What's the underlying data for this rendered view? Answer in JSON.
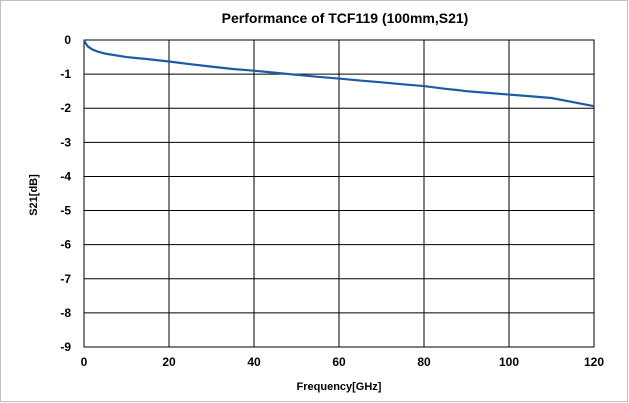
{
  "chart_data": {
    "type": "line",
    "title": "Performance of TCF119 (100mm,S21)",
    "xlabel": "Frequency[GHz]",
    "ylabel": "S21[dB]",
    "xlim": [
      0,
      120
    ],
    "ylim": [
      -9,
      0
    ],
    "x_ticks": [
      0,
      20,
      40,
      60,
      80,
      100,
      120
    ],
    "y_ticks": [
      0,
      -1,
      -2,
      -3,
      -4,
      -5,
      -6,
      -7,
      -8,
      -9
    ],
    "x_tick_labels": [
      "0",
      "20",
      "40",
      "60",
      "80",
      "100",
      "120"
    ],
    "y_tick_labels": [
      "0",
      "-1",
      "-2",
      "-3",
      "-4",
      "-5",
      "-6",
      "-7",
      "-8",
      "-9"
    ],
    "grid": true,
    "legend": "none",
    "colors": {
      "series": "#1f5aa6",
      "grid": "#000000"
    },
    "series": [
      {
        "x": [
          0,
          0.5,
          1,
          2,
          3,
          5,
          10,
          15,
          20,
          25,
          30,
          35,
          40,
          45,
          50,
          55,
          60,
          65,
          70,
          75,
          80,
          85,
          88,
          90,
          92,
          95,
          100,
          105,
          110,
          115,
          120
        ],
        "y": [
          0,
          -0.12,
          -0.2,
          -0.28,
          -0.33,
          -0.4,
          -0.5,
          -0.56,
          -0.63,
          -0.71,
          -0.78,
          -0.85,
          -0.9,
          -0.96,
          -1.02,
          -1.08,
          -1.13,
          -1.19,
          -1.24,
          -1.3,
          -1.35,
          -1.43,
          -1.47,
          -1.5,
          -1.52,
          -1.55,
          -1.6,
          -1.65,
          -1.7,
          -1.82,
          -1.94
        ]
      }
    ]
  }
}
